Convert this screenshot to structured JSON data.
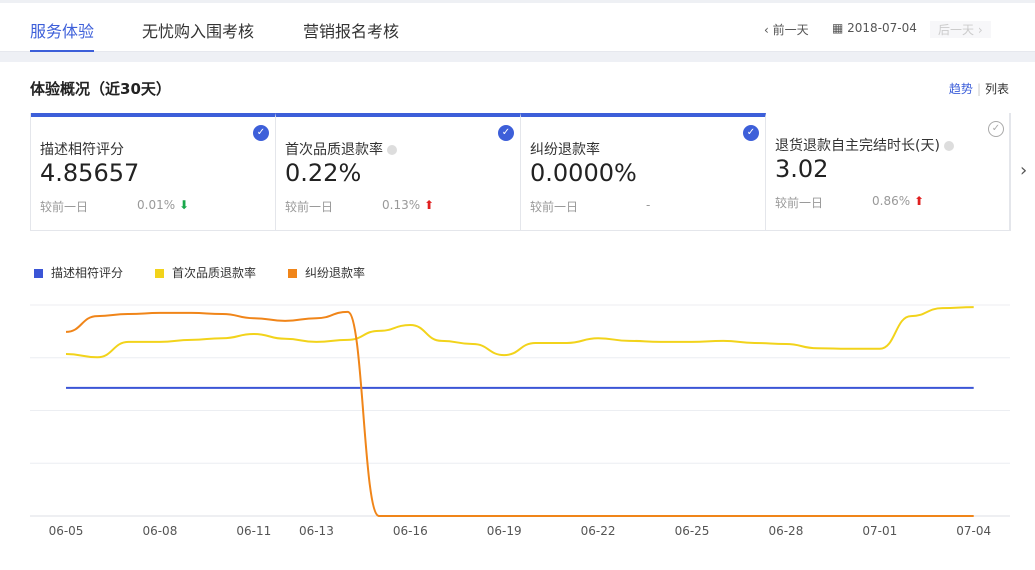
{
  "tabs": [
    {
      "label": "服务体验",
      "active": true
    },
    {
      "label": "无忧购入围考核"
    },
    {
      "label": "营销报名考核"
    }
  ],
  "datenav": {
    "prev": "前一天",
    "date": "2018-07-04",
    "next": "后一天",
    "prev_icon": "chevron-left-icon",
    "date_icon": "calendar-icon",
    "next_icon": "chevron-right-icon"
  },
  "section_title": "体验概况（近30天）",
  "views": {
    "trend": "趋势",
    "sep": "|",
    "list": "列表",
    "active": "trend"
  },
  "cards": [
    {
      "name": "描述相符评分",
      "value": "4.85657",
      "compare_label": "较前一日",
      "change": "0.01%",
      "dir": "down",
      "selected": true
    },
    {
      "name": "首次品质退款率",
      "value": "0.22%",
      "compare_label": "较前一日",
      "change": "0.13%",
      "dir": "up",
      "selected": true,
      "info": true
    },
    {
      "name": "纠纷退款率",
      "value": "0.0000%",
      "compare_label": "较前一日",
      "change": "-",
      "dir": "none",
      "selected": true
    },
    {
      "name": "退货退款自主完结时长(天)",
      "value": "3.02",
      "compare_label": "较前一日",
      "change": "0.86%",
      "dir": "up",
      "selected": false,
      "info": true
    }
  ],
  "colors": {
    "accent": "#3d5fd9",
    "up": "#e02020",
    "down": "#19a84b"
  },
  "chart_data": {
    "type": "line",
    "grid": true,
    "legend": "top-left",
    "ylim": [
      0,
      4
    ],
    "x": [
      "06-05",
      "06-06",
      "06-07",
      "06-08",
      "06-09",
      "06-10",
      "06-11",
      "06-12",
      "06-13",
      "06-14",
      "06-15",
      "06-16",
      "06-17",
      "06-18",
      "06-19",
      "06-20",
      "06-21",
      "06-22",
      "06-23",
      "06-24",
      "06-25",
      "06-26",
      "06-27",
      "06-28",
      "06-29",
      "06-30",
      "07-01",
      "07-02",
      "07-03",
      "07-04"
    ],
    "xticks": [
      "06-05",
      "06-08",
      "06-11",
      "06-13",
      "06-16",
      "06-19",
      "06-22",
      "06-25",
      "06-28",
      "07-01",
      "07-04"
    ],
    "series": [
      {
        "name": "描述相符评分",
        "color": "#3b55d6",
        "values": [
          2.43,
          2.43,
          2.43,
          2.43,
          2.43,
          2.43,
          2.43,
          2.43,
          2.43,
          2.43,
          2.43,
          2.43,
          2.43,
          2.43,
          2.43,
          2.43,
          2.43,
          2.43,
          2.43,
          2.43,
          2.43,
          2.43,
          2.43,
          2.43,
          2.43,
          2.43,
          2.43,
          2.43,
          2.43,
          2.43
        ]
      },
      {
        "name": "首次品质退款率",
        "color": "#f2d31b",
        "values": [
          3.07,
          3.01,
          3.3,
          3.3,
          3.34,
          3.37,
          3.45,
          3.36,
          3.3,
          3.34,
          3.51,
          3.62,
          3.32,
          3.26,
          3.05,
          3.28,
          3.28,
          3.37,
          3.32,
          3.3,
          3.3,
          3.32,
          3.28,
          3.26,
          3.18,
          3.17,
          3.17,
          3.79,
          3.94,
          3.96
        ]
      },
      {
        "name": "纠纷退款率",
        "color": "#f08519",
        "values": [
          3.49,
          3.79,
          3.83,
          3.85,
          3.85,
          3.83,
          3.75,
          3.7,
          3.75,
          3.87,
          0,
          0,
          0,
          0,
          0,
          0,
          0,
          0,
          0,
          0,
          0,
          0,
          0,
          0,
          0,
          0,
          0,
          0,
          0,
          0
        ]
      }
    ]
  }
}
